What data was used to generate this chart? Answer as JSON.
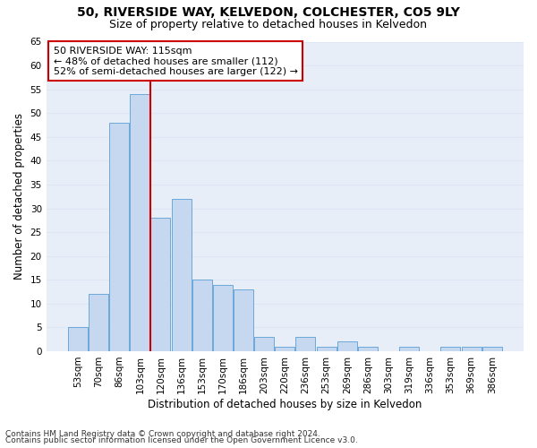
{
  "title1": "50, RIVERSIDE WAY, KELVEDON, COLCHESTER, CO5 9LY",
  "title2": "Size of property relative to detached houses in Kelvedon",
  "xlabel": "Distribution of detached houses by size in Kelvedon",
  "ylabel": "Number of detached properties",
  "categories": [
    "53sqm",
    "70sqm",
    "86sqm",
    "103sqm",
    "120sqm",
    "136sqm",
    "153sqm",
    "170sqm",
    "186sqm",
    "203sqm",
    "220sqm",
    "236sqm",
    "253sqm",
    "269sqm",
    "286sqm",
    "303sqm",
    "319sqm",
    "336sqm",
    "353sqm",
    "369sqm",
    "386sqm"
  ],
  "values": [
    5,
    12,
    48,
    54,
    28,
    32,
    15,
    14,
    13,
    3,
    1,
    3,
    1,
    2,
    1,
    0,
    1,
    0,
    1,
    1,
    1
  ],
  "bar_color": "#c5d8f0",
  "bar_edge_color": "#5a9fd4",
  "vline_color": "#cc0000",
  "vline_pos": 3.5,
  "annotation_text": "50 RIVERSIDE WAY: 115sqm\n← 48% of detached houses are smaller (112)\n52% of semi-detached houses are larger (122) →",
  "annotation_box_color": "#ffffff",
  "annotation_box_edge": "#cc0000",
  "ylim": [
    0,
    65
  ],
  "yticks": [
    0,
    5,
    10,
    15,
    20,
    25,
    30,
    35,
    40,
    45,
    50,
    55,
    60,
    65
  ],
  "grid_color": "#dce6f5",
  "background_color": "#e8eef8",
  "footnote1": "Contains HM Land Registry data © Crown copyright and database right 2024.",
  "footnote2": "Contains public sector information licensed under the Open Government Licence v3.0.",
  "title1_fontsize": 10,
  "title2_fontsize": 9,
  "xlabel_fontsize": 8.5,
  "ylabel_fontsize": 8.5,
  "tick_fontsize": 7.5,
  "annotation_fontsize": 8,
  "footnote_fontsize": 6.5
}
